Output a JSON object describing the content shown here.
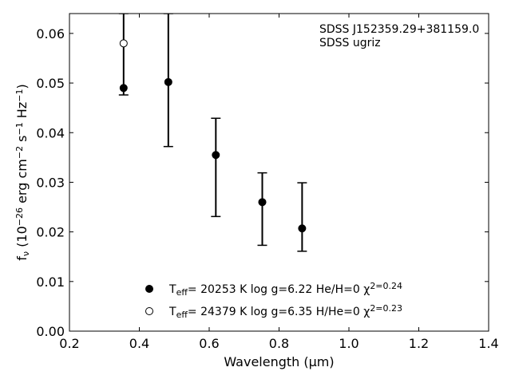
{
  "chart_data": {
    "type": "scatter",
    "xlabel": "Wavelength (μm)",
    "ylabel": "f_ν (10^−26 erg cm^−2 s^−1 Hz^−1)",
    "xlim": [
      0.2,
      1.4
    ],
    "ylim": [
      0.0,
      0.064
    ],
    "xticks": [
      "0.2",
      "0.4",
      "0.6",
      "0.8",
      "1.0",
      "1.2",
      "1.4"
    ],
    "yticks": [
      "0.00",
      "0.01",
      "0.02",
      "0.03",
      "0.04",
      "0.05",
      "0.06"
    ],
    "annotation": [
      "SDSS J152359.29+381159.0",
      "SDSS ugriz"
    ],
    "legend_position": "bottom-center",
    "grid": false,
    "series": [
      {
        "name": "T_eff= 20253 K  log g=6.22  He/H=0  χ²=0.24",
        "marker": "filled-circle",
        "points": [
          {
            "x": 0.355,
            "y": 0.049
          },
          {
            "x": 0.483,
            "y": 0.0502
          },
          {
            "x": 0.619,
            "y": 0.0355
          },
          {
            "x": 0.752,
            "y": 0.026
          },
          {
            "x": 0.866,
            "y": 0.0207
          }
        ]
      },
      {
        "name": "T_eff= 24379 K  log g=6.35  H/He=0  χ²=0.23",
        "marker": "open-circle",
        "points": [
          {
            "x": 0.355,
            "y": 0.058
          }
        ]
      }
    ],
    "observed_errorbars": [
      {
        "x": 0.355,
        "low": 0.0476,
        "high": 0.064
      },
      {
        "x": 0.483,
        "low": 0.0372,
        "high": 0.064
      },
      {
        "x": 0.619,
        "low": 0.0231,
        "high": 0.0429
      },
      {
        "x": 0.752,
        "low": 0.0173,
        "high": 0.0319
      },
      {
        "x": 0.866,
        "low": 0.0161,
        "high": 0.0299
      }
    ]
  }
}
